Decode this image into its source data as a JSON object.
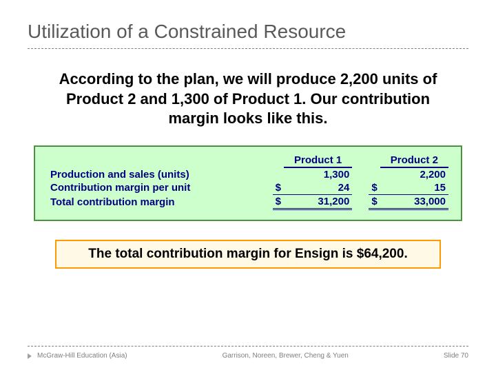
{
  "title": "Utilization of a Constrained Resource",
  "body_text": "According to the plan, we will produce 2,200 units of Product 2 and 1,300 of Product 1. Our contribution margin looks like this.",
  "table": {
    "background_color": "#ccffcc",
    "text_color": "#000080",
    "border_color": "#2e7d32",
    "columns": [
      "Product 1",
      "Product 2"
    ],
    "rows": [
      {
        "label": "Production and sales (units)",
        "vals": [
          "1,300",
          "2,200"
        ],
        "dollar": false,
        "underline": "none"
      },
      {
        "label": "Contribution margin per unit",
        "vals": [
          "24",
          "15"
        ],
        "dollar": true,
        "underline": "single"
      },
      {
        "label": "Total contribution margin",
        "vals": [
          "31,200",
          "33,000"
        ],
        "dollar": true,
        "underline": "double"
      }
    ]
  },
  "summary": "The total contribution margin for Ensign is $64,200.",
  "footer": {
    "left": "McGraw-Hill Education (Asia)",
    "center": "Garrison, Noreen, Brewer, Cheng & Yuen",
    "right_label": "Slide",
    "right_num": "70"
  },
  "style": {
    "title_color": "#595959",
    "dash_color": "#7f7f7f",
    "summary_border": "#ff9900",
    "summary_bg": "#fff9e6",
    "font": "Arial"
  }
}
